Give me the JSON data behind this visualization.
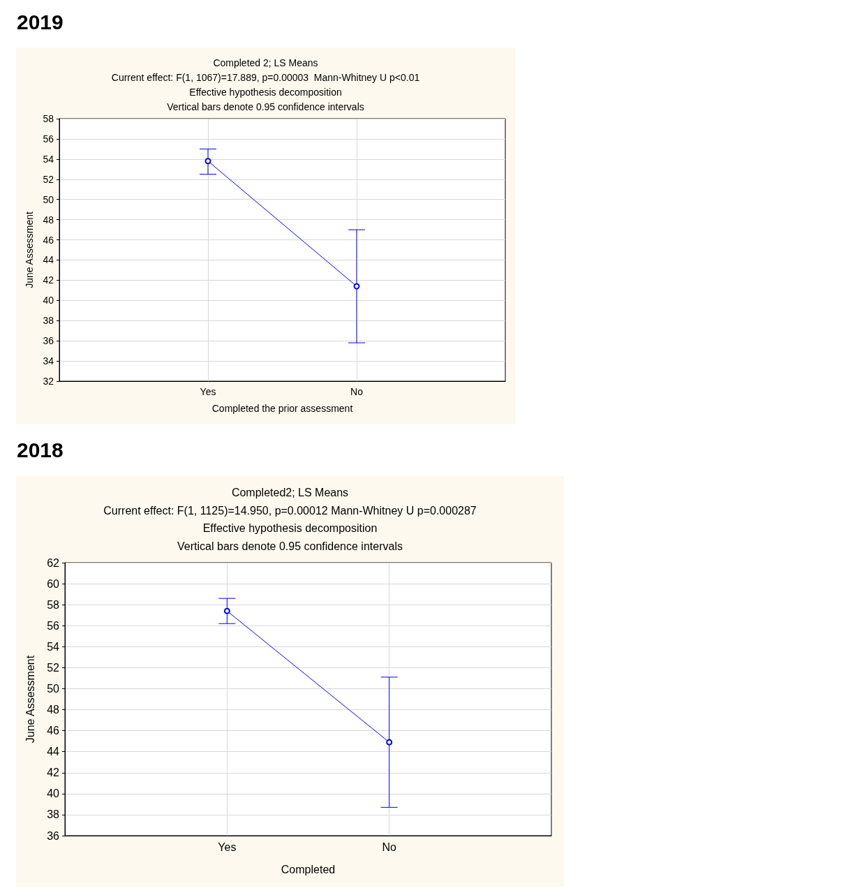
{
  "chart_data": [
    {
      "type": "line",
      "title": "2019",
      "subtitle": "Completed 2; LS Means\nCurrent effect: F(1, 1067)=17.889, p=0.00003  Mann-Whitney U p<0.01\nEffective hypothesis decomposition\nVertical bars denote 0.95 confidence intervals",
      "xlabel": "Completed the prior assessment",
      "ylabel": "June Assessment",
      "categories": [
        "Yes",
        "No"
      ],
      "series": [
        {
          "color": "#0000ff",
          "values": [
            53.8,
            41.4
          ],
          "errors": [
            [
              52.5,
              55.0
            ],
            [
              35.8,
              47.0
            ]
          ]
        }
      ],
      "ylim": [
        32,
        58
      ],
      "yticks": [
        32,
        34,
        36,
        38,
        40,
        42,
        44,
        46,
        48,
        50,
        52,
        54,
        56,
        58
      ],
      "grid": true,
      "marker": "circle"
    },
    {
      "type": "line",
      "title": "2018",
      "subtitle": "Completed2; LS Means\nCurrent effect: F(1, 1125)=14.950, p=0.00012 Mann-Whitney U p=0.000287\nEffective hypothesis decomposition\nVertical bars denote 0.95 confidence intervals",
      "xlabel": "Completed",
      "ylabel": "June Assessment",
      "categories": [
        "Yes",
        "No"
      ],
      "series": [
        {
          "color": "#0000ff",
          "values": [
            57.4,
            44.9
          ],
          "errors": [
            [
              56.2,
              58.6
            ],
            [
              38.7,
              51.1
            ]
          ]
        }
      ],
      "ylim": [
        36,
        62
      ],
      "yticks": [
        36,
        38,
        40,
        42,
        44,
        46,
        48,
        50,
        52,
        54,
        56,
        58,
        60,
        62
      ],
      "grid": true,
      "marker": "circle"
    }
  ]
}
